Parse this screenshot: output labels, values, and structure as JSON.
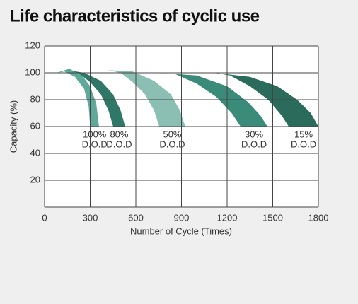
{
  "chart_data": {
    "type": "band",
    "title": "Life characteristics of cyclic use",
    "x_label": "Number of Cycle (Times)",
    "y_label": "Capacity (%)",
    "xlim": [
      0,
      1800
    ],
    "xticks": [
      0,
      300,
      600,
      900,
      1200,
      1500,
      1800
    ],
    "ylim": [
      0,
      120
    ],
    "yticks": [
      20,
      40,
      60,
      80,
      100,
      120
    ],
    "grid": true,
    "series": [
      {
        "name": "100%",
        "sublabel": "D.O.D",
        "color": "#5ea99a",
        "x": [
          80,
          160,
          240,
          300,
          340,
          358,
          300,
          290,
          260,
          200,
          130,
          80
        ],
        "values": [
          100,
          103,
          99,
          90,
          77,
          60,
          60,
          75,
          88,
          97,
          101,
          100
        ]
      },
      {
        "name": "80%",
        "sublabel": "D.O.D",
        "color": "#2f7767",
        "x": [
          150,
          260,
          370,
          450,
          500,
          530,
          451,
          420,
          370,
          300,
          220,
          150
        ],
        "values": [
          102,
          100,
          94,
          84,
          72,
          60,
          60,
          72,
          84,
          93,
          100,
          102
        ]
      },
      {
        "name": "50%",
        "sublabel": "D.O.D",
        "color": "#8cbfb3",
        "x": [
          414,
          580,
          720,
          830,
          890,
          925,
          754,
          720,
          660,
          580,
          500,
          414
        ],
        "values": [
          102,
          101,
          94,
          84,
          72,
          60,
          60,
          72,
          84,
          93,
          100,
          102
        ]
      },
      {
        "name": "30%",
        "sublabel": "D.O.D",
        "color": "#3b8b7a",
        "x": [
          740,
          1000,
          1200,
          1340,
          1420,
          1465,
          1289,
          1230,
          1130,
          1000,
          860,
          740
        ],
        "values": [
          100,
          98,
          90,
          78,
          68,
          60,
          60,
          70,
          82,
          92,
          99,
          100
        ]
      },
      {
        "name": "15%",
        "sublabel": "D.O.D",
        "color": "#2a6b5b",
        "x": [
          1116,
          1350,
          1530,
          1660,
          1750,
          1800,
          1605,
          1560,
          1470,
          1350,
          1220,
          1116
        ],
        "values": [
          100,
          97,
          90,
          80,
          70,
          60,
          60,
          68,
          80,
          90,
          98,
          100
        ]
      }
    ]
  }
}
